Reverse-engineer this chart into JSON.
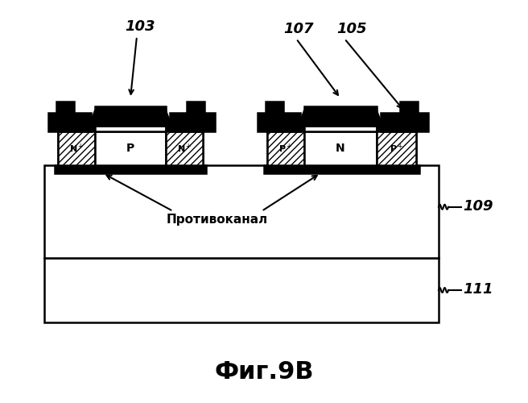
{
  "title": "Фиг.9B",
  "label_103": "103",
  "label_105": "105",
  "label_107": "107",
  "label_109": "109",
  "label_111": "111",
  "label_противоканал": "Противоканал",
  "bg_color": "#ffffff",
  "black": "#000000",
  "white": "#ffffff"
}
